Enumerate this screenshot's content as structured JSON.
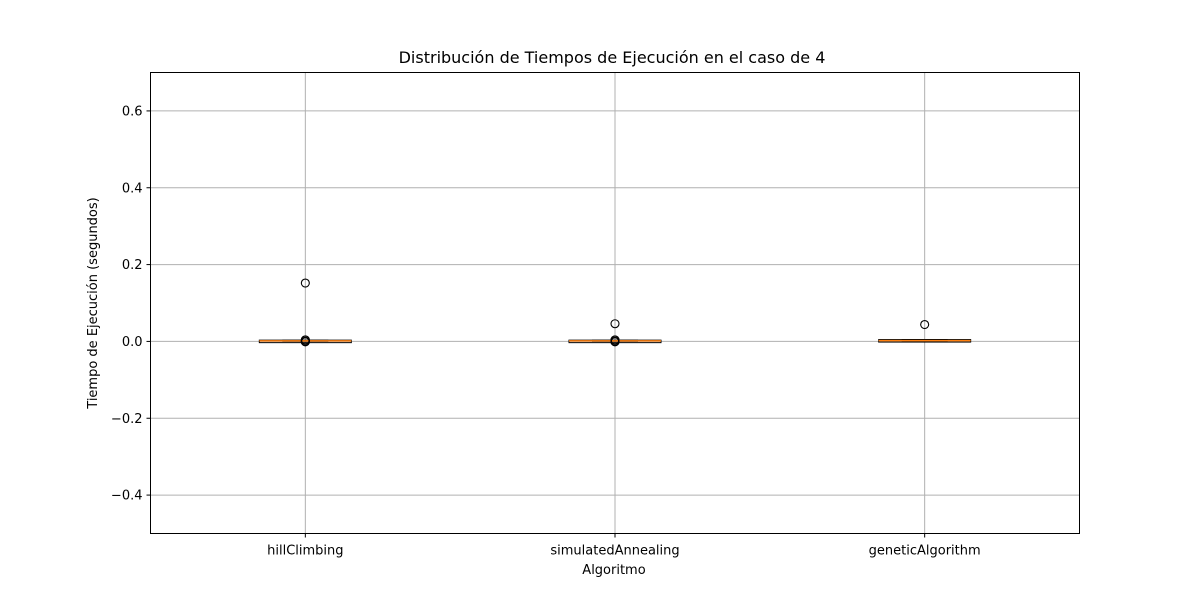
{
  "chart_data": {
    "type": "box",
    "title": "Distribución de Tiempos de Ejecución en el caso de 4",
    "xlabel": "Algoritmo",
    "ylabel": "Tiempo de Ejecución (segundos)",
    "ylim": [
      -0.5,
      0.7
    ],
    "yticks": [
      -0.4,
      -0.2,
      0.0,
      0.2,
      0.4,
      0.6
    ],
    "ytick_labels": [
      "−0.4",
      "−0.2",
      "0.0",
      "0.2",
      "0.4",
      "0.6"
    ],
    "grid": true,
    "categories": [
      "hillClimbing",
      "simulatedAnnealing",
      "geneticAlgorithm"
    ],
    "boxes": [
      {
        "name": "hillClimbing",
        "whisker_low": 0.0005,
        "q1": 0.001,
        "median": 0.0015,
        "q3": 0.002,
        "whisker_high": 0.003,
        "outliers": [
          0.152,
          0.004,
          0.0035,
          0.0003,
          -0.0005,
          -0.001
        ]
      },
      {
        "name": "simulatedAnnealing",
        "whisker_low": 0.0005,
        "q1": 0.001,
        "median": 0.0015,
        "q3": 0.002,
        "whisker_high": 0.003,
        "outliers": [
          0.046,
          0.004,
          0.0035,
          0.0003,
          -0.0005,
          -0.001
        ]
      },
      {
        "name": "geneticAlgorithm",
        "whisker_low": 0.001,
        "q1": 0.0015,
        "median": 0.002,
        "q3": 0.0035,
        "whisker_high": 0.005,
        "outliers": [
          0.044
        ]
      }
    ],
    "colors": {
      "box": "#000000",
      "median": "#ff7f0e",
      "grid": "#b0b0b0",
      "outlier": "#000000"
    }
  }
}
